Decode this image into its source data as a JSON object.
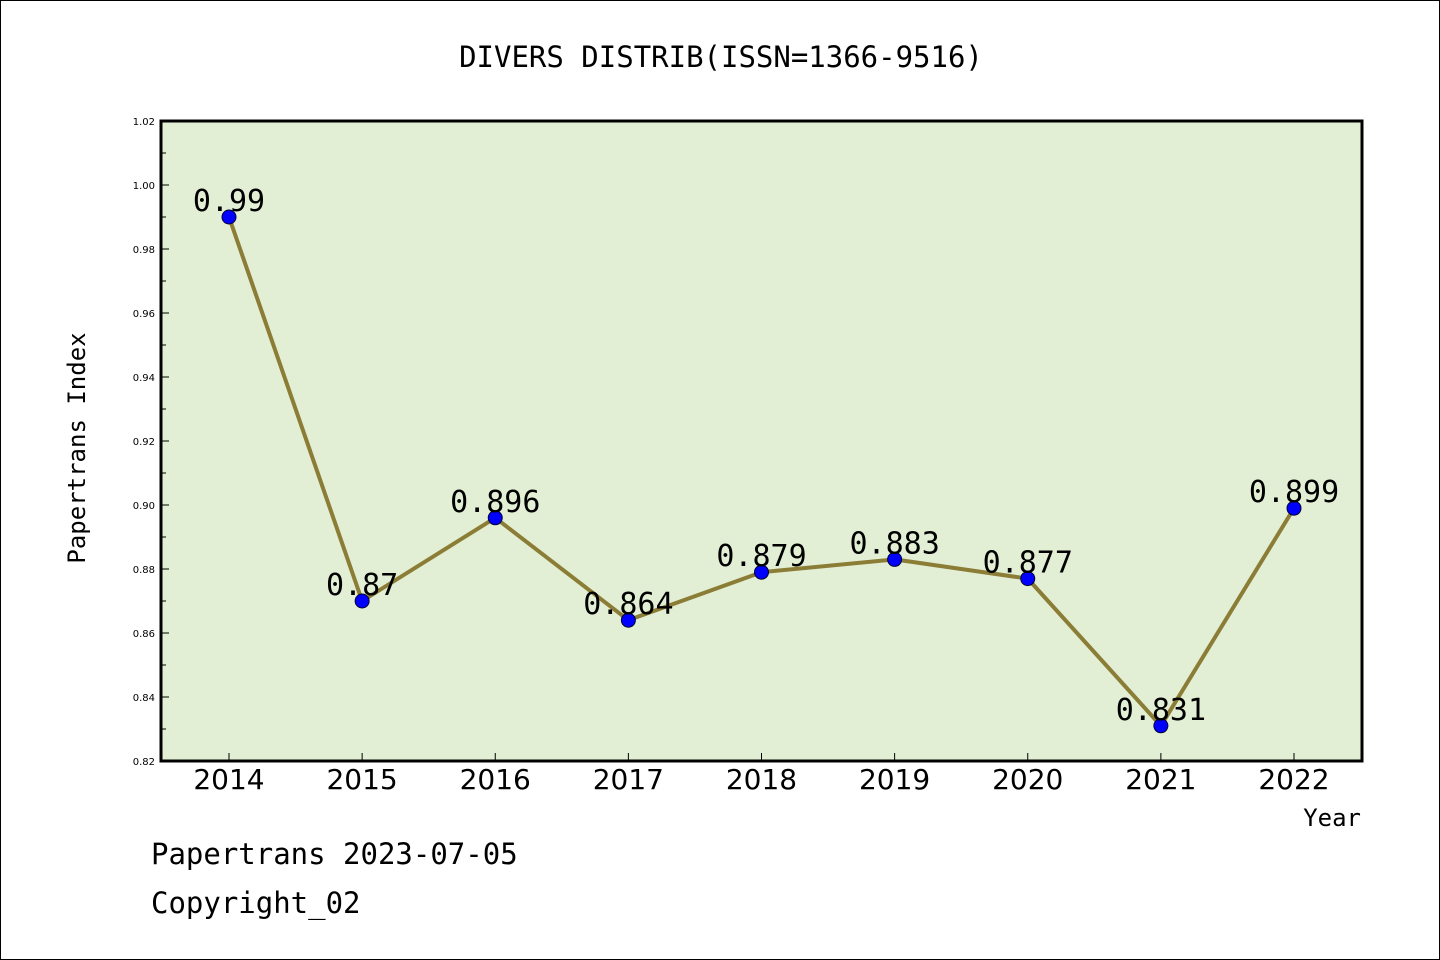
{
  "chart_data": {
    "type": "line",
    "title": "DIVERS DISTRIB(ISSN=1366-9516)",
    "xlabel": "Year",
    "ylabel": "Papertrans Index",
    "categories": [
      "2014",
      "2015",
      "2016",
      "2017",
      "2018",
      "2019",
      "2020",
      "2021",
      "2022"
    ],
    "series": [
      {
        "values": [
          0.99,
          0.87,
          0.896,
          0.864,
          0.879,
          0.883,
          0.877,
          0.831,
          0.899
        ],
        "labels": [
          "0.99",
          "0.87",
          "0.896",
          "0.864",
          "0.879",
          "0.883",
          "0.877",
          "0.831",
          "0.899"
        ]
      }
    ],
    "ylim": [
      0.82,
      1.02
    ],
    "yticks": [
      "0.82",
      "0.84",
      "0.86",
      "0.88",
      "0.90",
      "0.92",
      "0.94",
      "0.96",
      "0.98",
      "1.00",
      "1.02"
    ],
    "grid": false,
    "colors": {
      "plot_background": "#e2efd5",
      "line": "#8b7d35",
      "marker": "#0000ff",
      "axis": "#000000"
    }
  },
  "footer": {
    "date_text": "Papertrans 2023-07-05",
    "copyright_text": "Copyright_02"
  }
}
